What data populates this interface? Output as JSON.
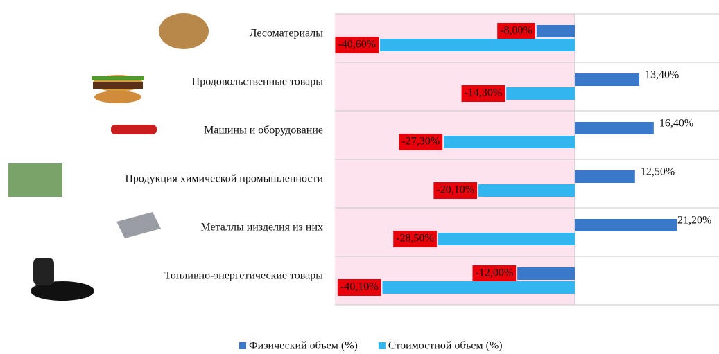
{
  "chart_data": {
    "type": "hbar",
    "categories": [
      "Лесоматериалы",
      "Продовольственные товары",
      "Машины и оборудование",
      "Продукция химической промышленности",
      "Металлы иизделия из них",
      "Топливно-энергетические товары"
    ],
    "series": [
      {
        "name": "Физический объем (%)",
        "color": "#3a78c9",
        "values": [
          -8.0,
          13.4,
          16.4,
          12.5,
          21.2,
          -12.0
        ],
        "value_labels": [
          "-8,00%",
          "13,40%",
          "16,40%",
          "12,50%",
          "21,20%",
          "-12,00%"
        ]
      },
      {
        "name": "Стоимостной объем (%)",
        "color": "#33b5f0",
        "values": [
          -40.6,
          -14.3,
          -27.3,
          -20.1,
          -28.5,
          -40.1
        ],
        "value_labels": [
          "-40,60%",
          "-14,30%",
          "-27,30%",
          "-20,10%",
          "-28,50%",
          "-40,10%"
        ]
      }
    ],
    "xlim": [
      -50,
      30
    ],
    "legend": "bottom"
  }
}
